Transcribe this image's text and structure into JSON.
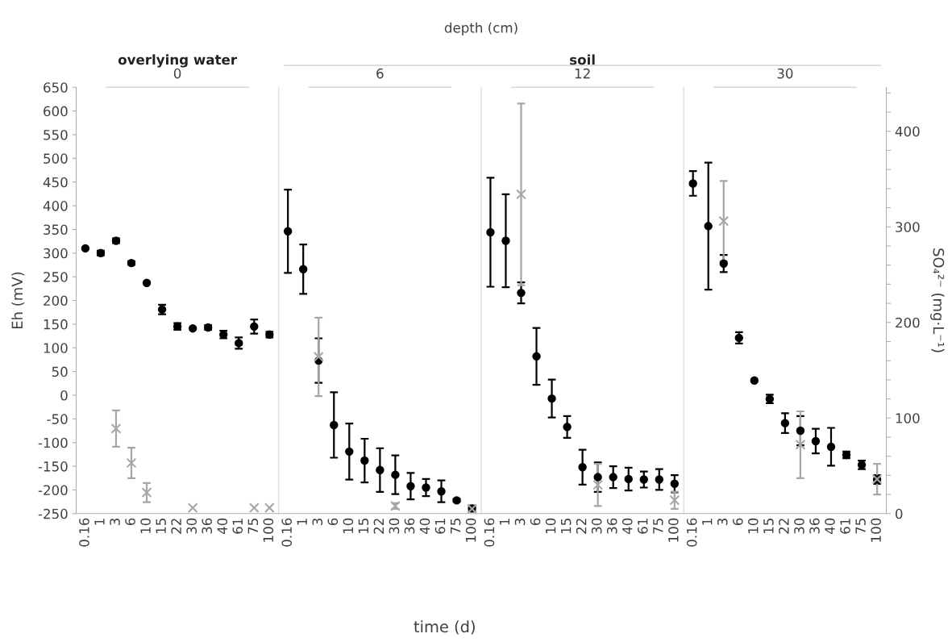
{
  "chart_data": [
    {
      "type": "scatter",
      "title": "0",
      "annotations": [
        "depth (cm)",
        "overlying water"
      ],
      "ylabel": "Eh (mV)",
      "categories": [
        "0.16",
        "1",
        "3",
        "6",
        "10",
        "15",
        "22",
        "30",
        "36",
        "40",
        "61",
        "75",
        "100"
      ],
      "ylim": [
        -250,
        650
      ],
      "yticks": [
        -250,
        -200,
        -150,
        -100,
        -50,
        0,
        50,
        100,
        150,
        200,
        250,
        300,
        350,
        400,
        450,
        500,
        550,
        600,
        650
      ],
      "y2lim": [
        0,
        446
      ],
      "series": [
        {
          "color": "#000000",
          "marker": "circle",
          "values": [
            310,
            300,
            326,
            279,
            237,
            181,
            145,
            141,
            143,
            128,
            110,
            145,
            128
          ],
          "errors": [
            null,
            5,
            5,
            4,
            null,
            10,
            7,
            null,
            5,
            8,
            12,
            15,
            6
          ]
        },
        {
          "color": "#a6a6a6",
          "marker": "cross",
          "axis": "y2",
          "values": [
            null,
            null,
            89,
            53,
            22,
            null,
            null,
            6,
            null,
            null,
            null,
            6,
            6
          ],
          "errors": [
            null,
            null,
            19,
            16,
            10,
            null,
            null,
            null,
            null,
            null,
            null,
            null,
            null
          ]
        }
      ]
    },
    {
      "type": "scatter",
      "title": "6",
      "annotations": [
        "soil"
      ],
      "tick_labels": "x",
      "xlabel": "time (d)",
      "y2ticks": [
        0,
        100,
        200,
        300,
        400
      ],
      "categories": [
        "0.16",
        "1",
        "3",
        "6",
        "10",
        "15",
        "22",
        "30",
        "36",
        "40",
        "61",
        "75",
        "100"
      ],
      "ylim": [
        -250,
        650
      ],
      "y2lim": [
        0,
        446
      ],
      "series": [
        {
          "color": "#000000",
          "marker": "circle",
          "values": [
            346,
            266,
            73,
            -63,
            -119,
            -138,
            -158,
            -168,
            -192,
            -195,
            -203,
            -222,
            -239
          ],
          "errors": [
            88,
            52,
            47,
            69,
            59,
            46,
            46,
            41,
            28,
            18,
            23,
            3,
            6
          ]
        },
        {
          "color": "#a6a6a6",
          "marker": "cross",
          "axis": "y2",
          "values": [
            null,
            null,
            164,
            null,
            null,
            null,
            null,
            8,
            null,
            null,
            null,
            null,
            5
          ],
          "errors": [
            null,
            null,
            41,
            null,
            null,
            null,
            null,
            3,
            null,
            null,
            null,
            null,
            3
          ]
        }
      ]
    },
    {
      "type": "scatter",
      "title": "12",
      "tick_labels": "x",
      "y2ticks": [
        0,
        100,
        200,
        300,
        400
      ],
      "categories": [
        "0.16",
        "1",
        "3",
        "6",
        "10",
        "15",
        "22",
        "30",
        "36",
        "40",
        "61",
        "75",
        "100"
      ],
      "ylim": [
        -250,
        650
      ],
      "y2lim": [
        0,
        446
      ],
      "series": [
        {
          "color": "#000000",
          "marker": "circle",
          "values": [
            344,
            326,
            216,
            82,
            -7,
            -67,
            -152,
            -173,
            -173,
            -177,
            -178,
            -178,
            -187
          ],
          "errors": [
            115,
            98,
            22,
            60,
            40,
            23,
            37,
            31,
            23,
            24,
            17,
            22,
            18
          ]
        },
        {
          "color": "#a6a6a6",
          "marker": "cross",
          "axis": "y2",
          "values": [
            null,
            null,
            334,
            null,
            null,
            null,
            null,
            30,
            null,
            null,
            null,
            null,
            14
          ],
          "errors": [
            null,
            null,
            95,
            null,
            null,
            null,
            null,
            22,
            null,
            null,
            null,
            null,
            9
          ]
        }
      ]
    },
    {
      "type": "scatter",
      "title": "30",
      "tick_labels": "xy2",
      "y2label": "SO₄²⁻ (mg·L⁻¹)",
      "categories": [
        "0.16",
        "1",
        "3",
        "6",
        "10",
        "15",
        "22",
        "30",
        "36",
        "40",
        "61",
        "75",
        "100"
      ],
      "ylim": [
        -250,
        650
      ],
      "y2lim": [
        0,
        446
      ],
      "y2ticks": [
        0,
        {
          "value": 20,
          "label": null
        },
        {
          "value": 40,
          "label": null
        },
        {
          "value": 60,
          "label": null
        },
        {
          "value": 80,
          "label": null
        },
        100,
        {
          "value": 120,
          "label": null
        },
        {
          "value": 140,
          "label": null
        },
        {
          "value": 160,
          "label": null
        },
        {
          "value": 180,
          "label": null
        },
        200,
        {
          "value": 220,
          "label": null
        },
        {
          "value": 240,
          "label": null
        },
        {
          "value": 260,
          "label": null
        },
        {
          "value": 280,
          "label": null
        },
        300,
        {
          "value": 320,
          "label": null
        },
        {
          "value": 340,
          "label": null
        },
        {
          "value": 360,
          "label": null
        },
        {
          "value": 380,
          "label": null
        },
        400,
        {
          "value": 420,
          "label": null
        },
        {
          "value": 440,
          "label": null
        }
      ],
      "series": [
        {
          "color": "#000000",
          "marker": "circle",
          "values": [
            447,
            357,
            278,
            121,
            31,
            -8,
            -59,
            -75,
            -97,
            -109,
            -126,
            -147,
            -178
          ],
          "errors": [
            26,
            134,
            18,
            12,
            null,
            9,
            21,
            31,
            26,
            40,
            7,
            9,
            9
          ]
        },
        {
          "color": "#a6a6a6",
          "marker": "cross",
          "axis": "y2",
          "values": [
            null,
            null,
            306,
            null,
            null,
            null,
            null,
            72,
            null,
            null,
            null,
            null,
            36
          ],
          "errors": [
            null,
            null,
            42,
            null,
            null,
            null,
            null,
            35,
            null,
            null,
            null,
            null,
            16
          ]
        }
      ]
    }
  ]
}
